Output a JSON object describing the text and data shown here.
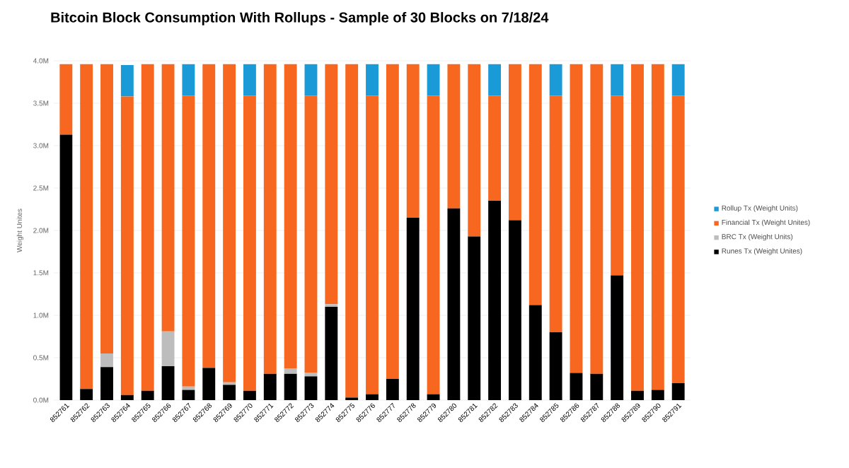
{
  "chart_data": {
    "type": "bar",
    "stacked": true,
    "title": "Bitcoin Block Consumption With Rollups - Sample of 30 Blocks on 7/18/24",
    "ylabel": "Weight Unites",
    "categories": [
      "852761",
      "852762",
      "852763",
      "852764",
      "852765",
      "852766",
      "852767",
      "852768",
      "852769",
      "852770",
      "852771",
      "852772",
      "852773",
      "852774",
      "852775",
      "852776",
      "852777",
      "852778",
      "852779",
      "852780",
      "852781",
      "852782",
      "852783",
      "852784",
      "852785",
      "852786",
      "852787",
      "852788",
      "852789",
      "852790",
      "852791"
    ],
    "series": [
      {
        "name": "Runes Tx (Weight Unites)",
        "color": "#000000",
        "values": [
          3.13,
          0.13,
          0.39,
          0.06,
          0.11,
          0.4,
          0.12,
          0.38,
          0.18,
          0.11,
          0.31,
          0.31,
          0.28,
          1.1,
          0.03,
          0.07,
          0.25,
          2.15,
          0.07,
          2.26,
          1.93,
          2.35,
          2.12,
          1.12,
          0.8,
          0.32,
          0.31,
          1.47,
          0.11,
          0.12,
          0.2
        ]
      },
      {
        "name": "BRC Tx (Weight Units)",
        "color": "#bdbdbd",
        "values": [
          0,
          0,
          0.16,
          null,
          0,
          0.41,
          0.04,
          0,
          0.03,
          0,
          0,
          0.06,
          0.04,
          0.03,
          0,
          0,
          0,
          0,
          0,
          0,
          0,
          0,
          0,
          0,
          0,
          0,
          0,
          0,
          0,
          0,
          0
        ]
      },
      {
        "name": "Financial Tx (Weight Unites)",
        "color": "#f7671f",
        "values": [
          0.83,
          3.83,
          3.41,
          3.52,
          3.85,
          3.15,
          3.43,
          3.58,
          3.75,
          3.48,
          3.65,
          3.59,
          3.27,
          2.83,
          3.93,
          3.52,
          3.71,
          1.81,
          3.52,
          1.7,
          2.03,
          1.24,
          1.84,
          2.84,
          2.79,
          3.64,
          3.65,
          2.12,
          3.85,
          3.84,
          3.39
        ]
      },
      {
        "name": "Rollup Tx (Weight Units)",
        "color": "#1a9ad6",
        "values": [
          0,
          0,
          0,
          0.37,
          0,
          0,
          0.37,
          0,
          0,
          0.37,
          0,
          0,
          0.37,
          0,
          0,
          0.37,
          0,
          0,
          0.37,
          0,
          0,
          0.37,
          0,
          0,
          0.37,
          0,
          0,
          0.37,
          0,
          0,
          0.37
        ]
      }
    ],
    "ylim": [
      0,
      4
    ],
    "yticks": [
      {
        "value": 0,
        "label": "0.0M"
      },
      {
        "value": 0.5,
        "label": "0.5M"
      },
      {
        "value": 1,
        "label": "1.0M"
      },
      {
        "value": 1.5,
        "label": "1.5M"
      },
      {
        "value": 2,
        "label": "2.0M"
      },
      {
        "value": 2.5,
        "label": "2.5M"
      },
      {
        "value": 3,
        "label": "3.0M"
      },
      {
        "value": 3.5,
        "label": "3.5M"
      },
      {
        "value": 4,
        "label": "4.0M"
      }
    ],
    "grid": "y",
    "legend": "right"
  }
}
